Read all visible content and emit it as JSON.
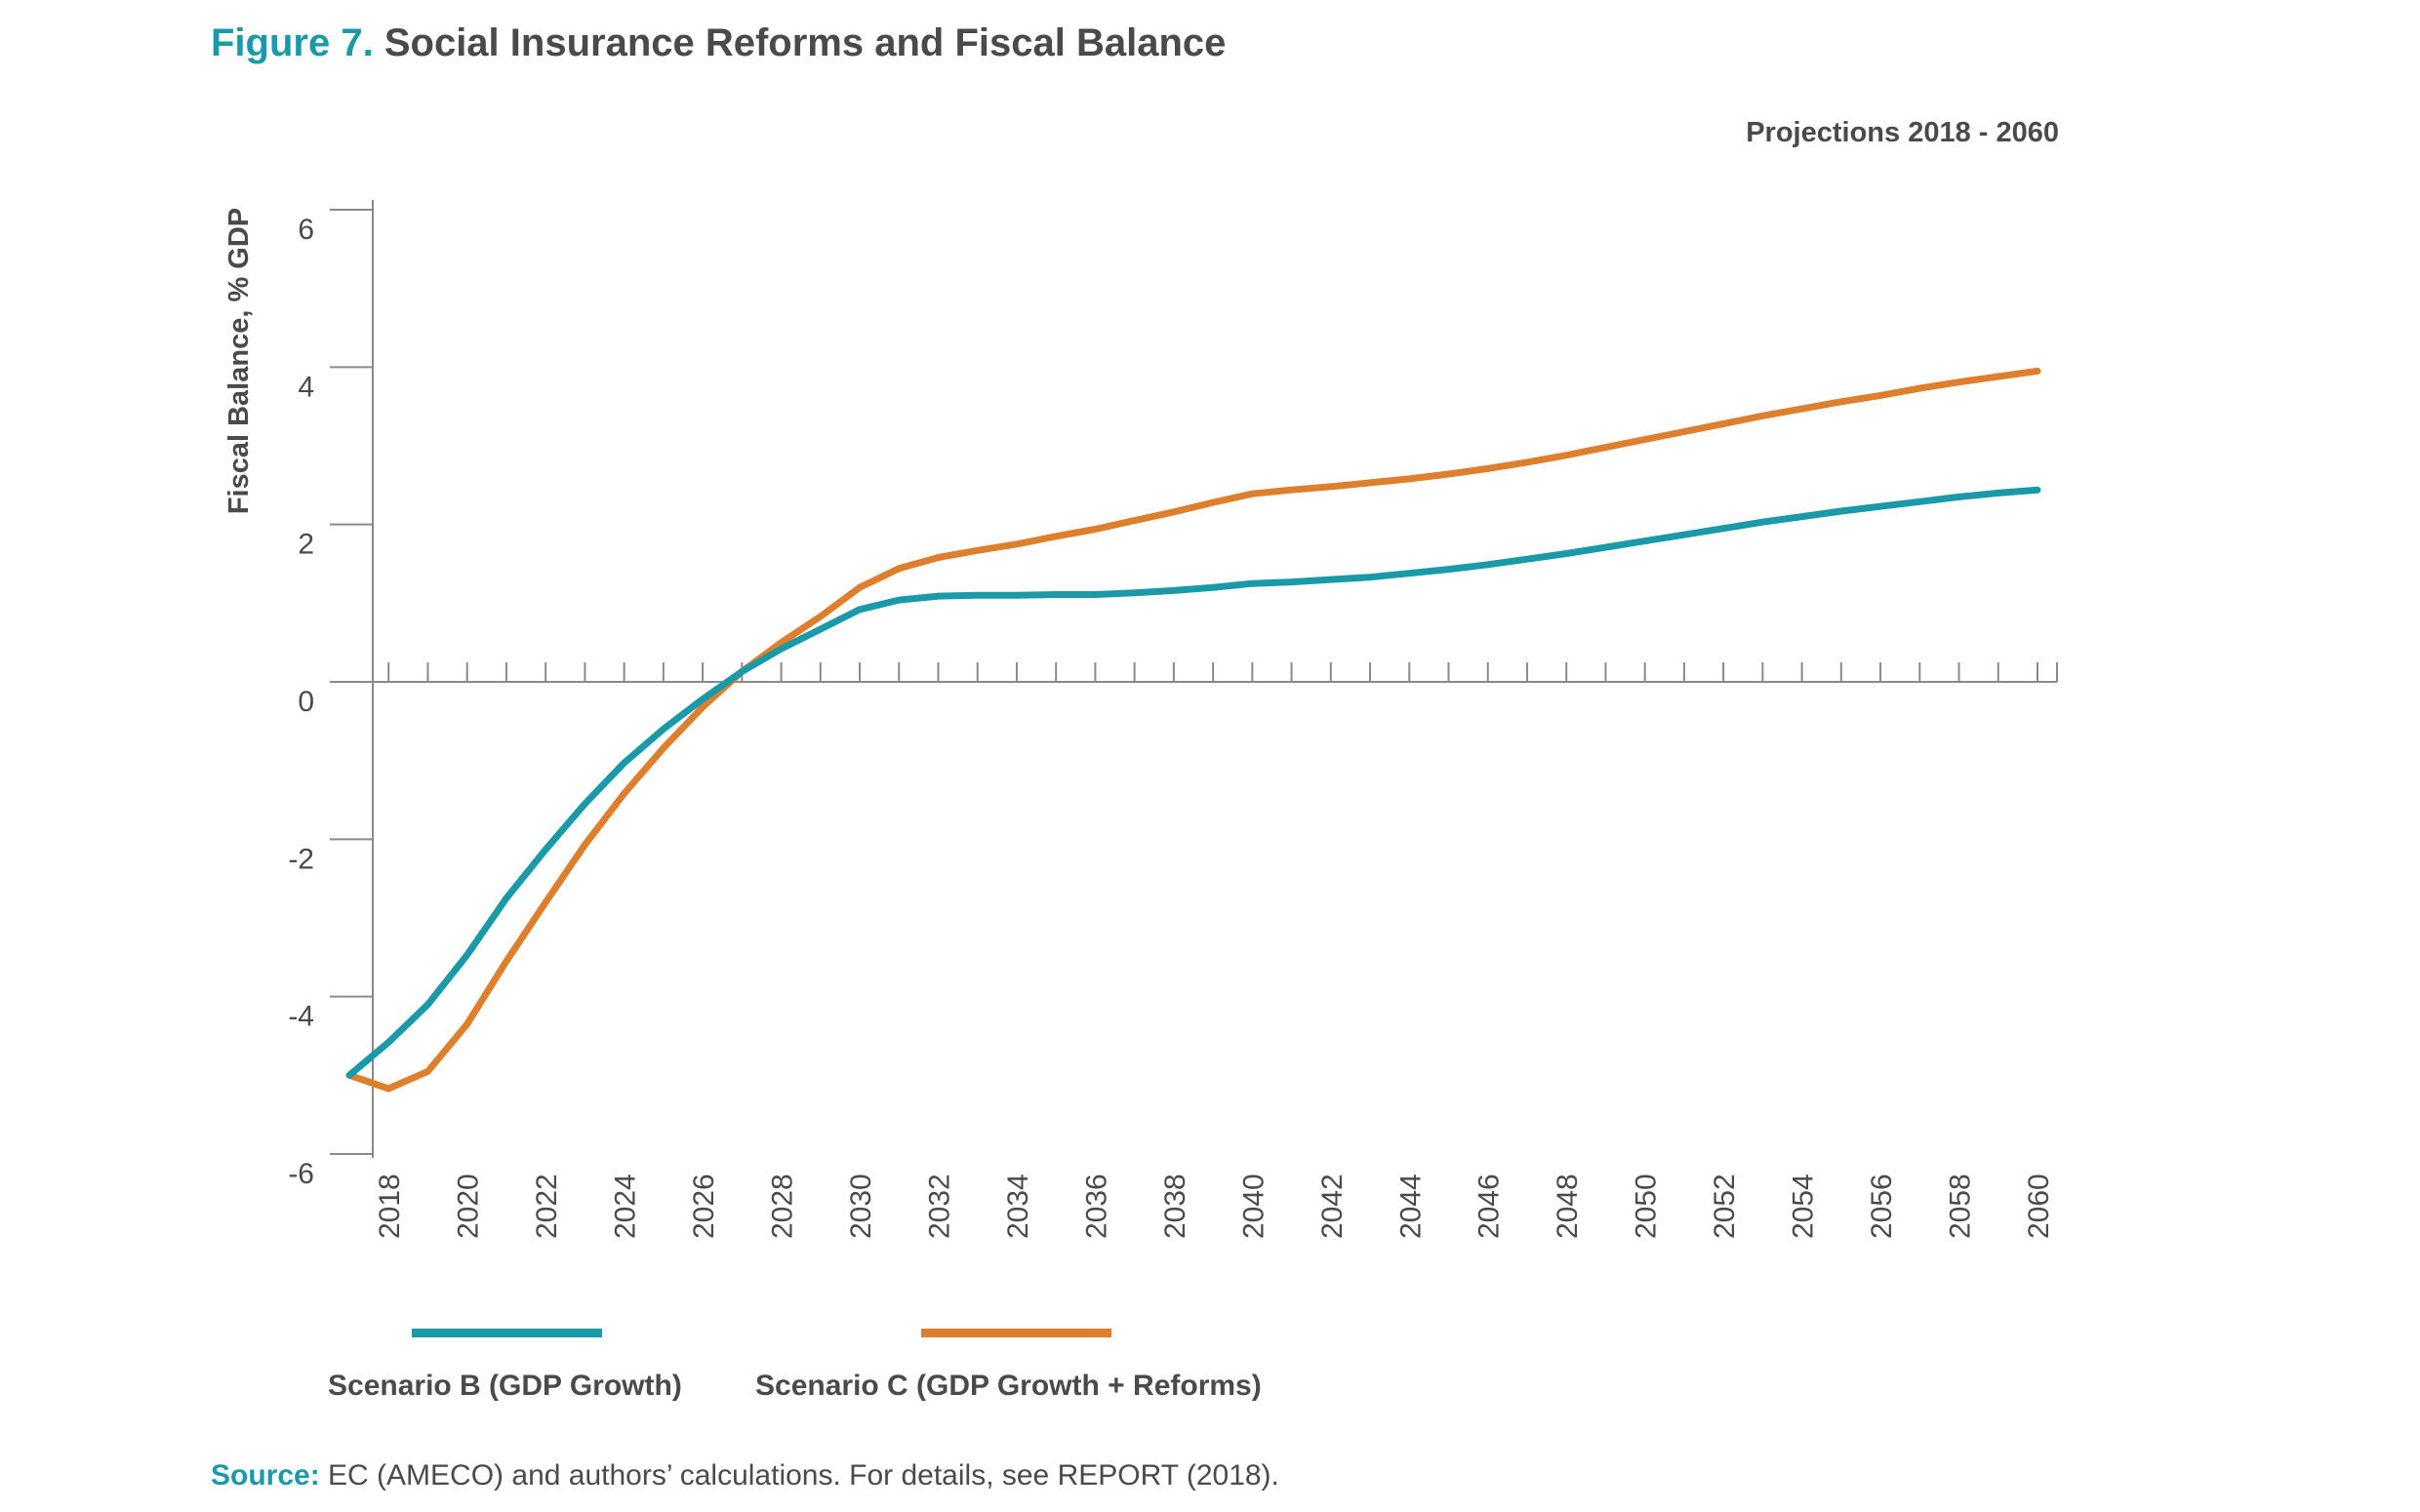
{
  "figure_label": "Figure 7.",
  "figure_title": "Social Insurance Reforms and Fiscal Balance",
  "subtitle": "Projections 2018 - 2060",
  "source": {
    "label": "Source:",
    "text": "EC (AMECO) and authors’ calculations. For details, see REPORT (2018)."
  },
  "colors": {
    "accent": "#1a9aa8",
    "scenario_b": "#1a9aa8",
    "scenario_c": "#de7f2e",
    "axis": "#8a8a8a",
    "text": "#4a4a4a"
  },
  "chart_data": {
    "type": "line",
    "title": "Social Insurance Reforms and Fiscal Balance",
    "subtitle": "Projections 2018 - 2060",
    "ylabel": "Fiscal Balance, % GDP",
    "xlabel": "",
    "ylim": [
      -6,
      6
    ],
    "xlim": [
      2017,
      2060
    ],
    "yticks": [
      6,
      4,
      2,
      0,
      -2,
      -4,
      -6
    ],
    "ytick_labels": [
      "6",
      "4",
      "2",
      "0",
      "-2",
      "-4",
      "-6"
    ],
    "xticks": [
      2018,
      2020,
      2022,
      2024,
      2026,
      2028,
      2030,
      2032,
      2034,
      2036,
      2038,
      2040,
      2042,
      2044,
      2046,
      2048,
      2050,
      2052,
      2054,
      2056,
      2058,
      2060
    ],
    "xtick_labels": [
      "2018",
      "2020",
      "2022",
      "2024",
      "2026",
      "2028",
      "2030",
      "2032",
      "2034",
      "2036",
      "2038",
      "2040",
      "2042",
      "2044",
      "2046",
      "2048",
      "2050",
      "2052",
      "2054",
      "2056",
      "2058",
      "2060"
    ],
    "grid": false,
    "legend_position": "bottom",
    "x": [
      2017,
      2018,
      2019,
      2020,
      2021,
      2022,
      2023,
      2024,
      2025,
      2026,
      2027,
      2028,
      2029,
      2030,
      2031,
      2032,
      2033,
      2034,
      2035,
      2036,
      2037,
      2038,
      2039,
      2040,
      2041,
      2042,
      2043,
      2044,
      2045,
      2046,
      2047,
      2048,
      2049,
      2050,
      2051,
      2052,
      2053,
      2054,
      2055,
      2056,
      2057,
      2058,
      2059,
      2060
    ],
    "series": [
      {
        "name": "Scenario B (GDP Growth)",
        "color": "#1a9aa8",
        "values": [
          -5.0,
          -4.58,
          -4.1,
          -3.47,
          -2.75,
          -2.13,
          -1.55,
          -1.03,
          -0.6,
          -0.22,
          0.13,
          0.42,
          0.67,
          0.92,
          1.04,
          1.09,
          1.1,
          1.1,
          1.11,
          1.11,
          1.13,
          1.16,
          1.2,
          1.25,
          1.27,
          1.3,
          1.33,
          1.38,
          1.43,
          1.49,
          1.56,
          1.63,
          1.71,
          1.79,
          1.87,
          1.95,
          2.03,
          2.1,
          2.17,
          2.23,
          2.29,
          2.35,
          2.4,
          2.44
        ]
      },
      {
        "name": "Scenario C (GDP Growth + Reforms)",
        "color": "#de7f2e",
        "values": [
          -5.0,
          -5.17,
          -4.95,
          -4.35,
          -3.55,
          -2.8,
          -2.07,
          -1.42,
          -0.84,
          -0.32,
          0.13,
          0.5,
          0.83,
          1.2,
          1.44,
          1.58,
          1.67,
          1.75,
          1.85,
          1.94,
          2.05,
          2.16,
          2.28,
          2.39,
          2.44,
          2.48,
          2.53,
          2.58,
          2.64,
          2.71,
          2.79,
          2.88,
          2.98,
          3.08,
          3.18,
          3.28,
          3.38,
          3.47,
          3.56,
          3.64,
          3.73,
          3.81,
          3.88,
          3.95
        ]
      }
    ]
  }
}
